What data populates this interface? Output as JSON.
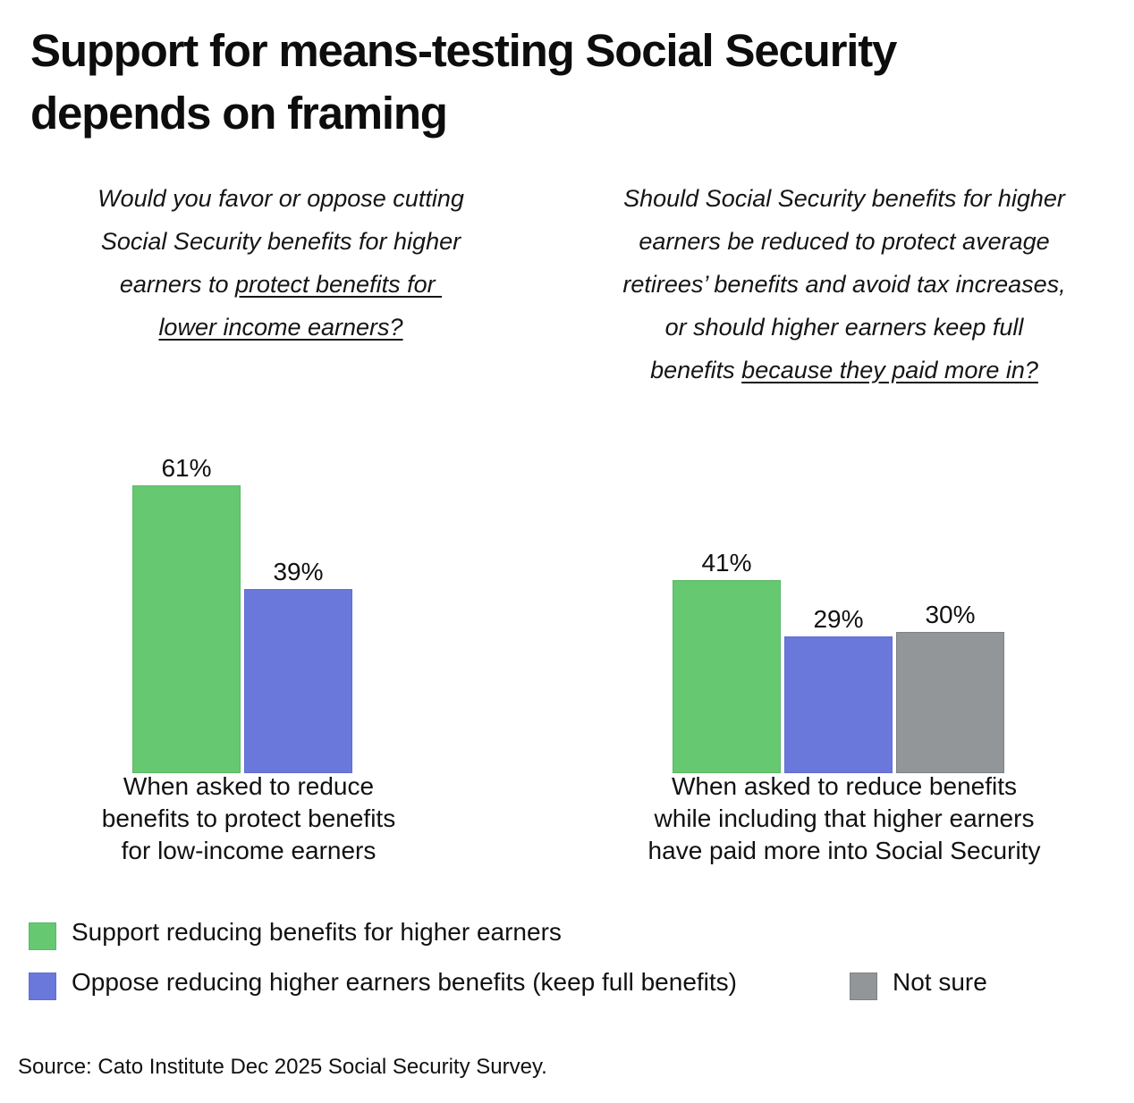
{
  "chart_data": {
    "type": "bar",
    "title": "Support for means-testing Social Security depends on framing",
    "title_lines": [
      "Support for means-testing Social Security",
      "depends on framing"
    ],
    "ylim": [
      0,
      70
    ],
    "grid": false,
    "legend_position": "bottom-left",
    "series_colors": {
      "support": "#66c871",
      "oppose": "#6b78db",
      "not_sure": "#939698"
    },
    "panels": [
      {
        "question_lines": [
          [
            {
              "t": "Would you favor or oppose cutting",
              "u": false
            }
          ],
          [
            {
              "t": "Social Security benefits for higher",
              "u": false
            }
          ],
          [
            {
              "t": "earners to ",
              "u": false
            },
            {
              "t": "protect benefits for ",
              "u": true
            }
          ],
          [
            {
              "t": "lower income earners?",
              "u": true
            }
          ]
        ],
        "category_lines": [
          "When asked to reduce",
          "benefits to protect benefits",
          "for low-income earners"
        ],
        "bars": [
          {
            "series": "support",
            "value": 61,
            "label": "61%"
          },
          {
            "series": "oppose",
            "value": 39,
            "label": "39%"
          }
        ]
      },
      {
        "question_lines": [
          [
            {
              "t": "Should Social Security benefits for higher",
              "u": false
            }
          ],
          [
            {
              "t": "earners be reduced to protect average",
              "u": false
            }
          ],
          [
            {
              "t": "retirees’ benefits and avoid tax increases,",
              "u": false
            }
          ],
          [
            {
              "t": "or should higher earners keep full",
              "u": false
            }
          ],
          [
            {
              "t": "benefits ",
              "u": false
            },
            {
              "t": "because they paid more in?",
              "u": true
            }
          ]
        ],
        "category_lines": [
          "When asked to reduce benefits",
          "while including that higher earners",
          "have paid more into Social Security"
        ],
        "bars": [
          {
            "series": "support",
            "value": 41,
            "label": "41%"
          },
          {
            "series": "oppose",
            "value": 29,
            "label": "29%"
          },
          {
            "series": "not_sure",
            "value": 30,
            "label": "30%"
          }
        ]
      }
    ],
    "legend": [
      {
        "series": "support",
        "label": "Support reducing benefits for higher earners"
      },
      {
        "series": "oppose",
        "label": "Oppose reducing higher earners benefits (keep full benefits)"
      },
      {
        "series": "not_sure",
        "label": "Not sure"
      }
    ],
    "source": "Source: Cato Institute Dec 2025 Social Security Survey."
  }
}
